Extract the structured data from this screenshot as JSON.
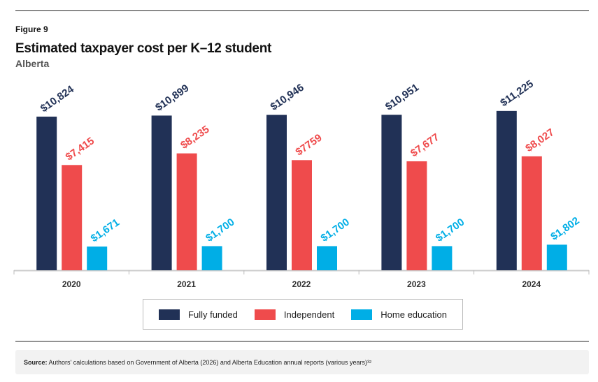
{
  "figure_label": "Figure 9",
  "source_label": "Source:",
  "source_text": "Authors' calculations based on Government of Alberta (2026) and Alberta Education annual reports (various years)³²",
  "chart_data": {
    "type": "bar",
    "title": "Estimated taxpayer cost per K–12 student",
    "subtitle": "Alberta",
    "categories": [
      "2020",
      "2021",
      "2022",
      "2023",
      "2024"
    ],
    "series": [
      {
        "name": "Fully funded",
        "color": "#213156",
        "values": [
          10824,
          10899,
          10946,
          10951,
          11225
        ],
        "labels": [
          "$10,824",
          "$10,899",
          "$10,946",
          "$10,951",
          "$11,225"
        ]
      },
      {
        "name": "Independent",
        "color": "#ef4b4c",
        "values": [
          7415,
          8235,
          7759,
          7677,
          8027
        ],
        "labels": [
          "$7,415",
          "$8,235",
          "$7759",
          "$7,677",
          "$8,027"
        ]
      },
      {
        "name": "Home education",
        "color": "#00aee6",
        "values": [
          1671,
          1700,
          1700,
          1700,
          1802
        ],
        "labels": [
          "$1,671",
          "$1,700",
          "$1,700",
          "$1,700",
          "$1,802"
        ]
      }
    ],
    "ylim": [
      0,
      12000
    ],
    "grid": false,
    "legend_position": "bottom"
  }
}
